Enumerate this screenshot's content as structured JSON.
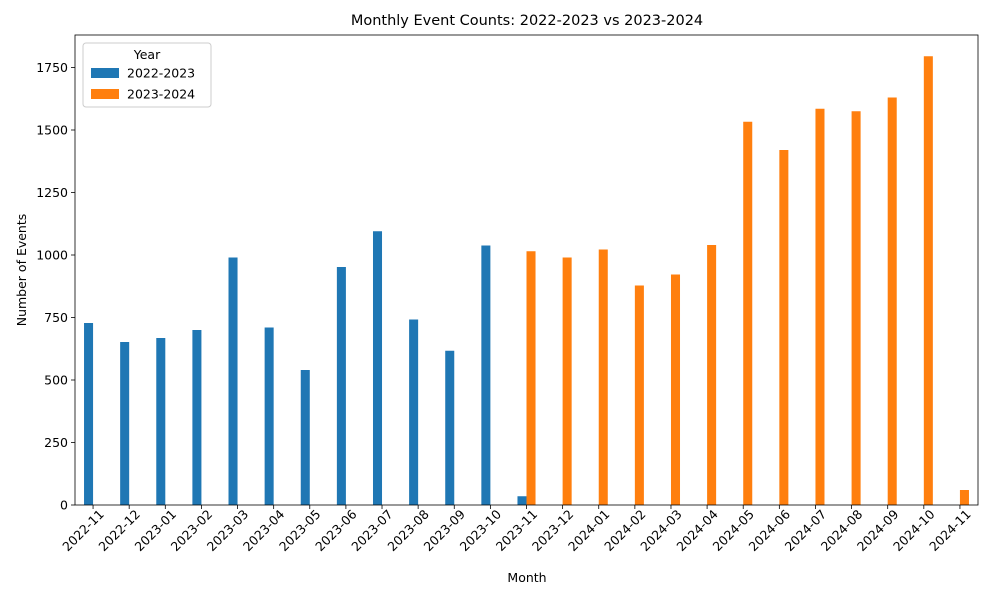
{
  "chart_data": {
    "type": "bar",
    "title": "Monthly Event Counts: 2022-2023 vs 2023-2024",
    "xlabel": "Month",
    "ylabel": "Number of Events",
    "ylim": [
      0,
      1880
    ],
    "yticks": [
      0,
      250,
      500,
      750,
      1000,
      1250,
      1500,
      1750
    ],
    "grid": false,
    "legend": {
      "title": "Year",
      "placement": "top-left"
    },
    "categories": [
      "2022-11",
      "2022-12",
      "2023-01",
      "2023-02",
      "2023-03",
      "2023-04",
      "2023-05",
      "2023-06",
      "2023-07",
      "2023-08",
      "2023-09",
      "2023-10",
      "2023-11",
      "2023-12",
      "2024-01",
      "2024-02",
      "2024-03",
      "2024-04",
      "2024-05",
      "2024-06",
      "2024-07",
      "2024-08",
      "2024-09",
      "2024-10",
      "2024-11"
    ],
    "series": [
      {
        "name": "2022-2023",
        "color": "#1f77b4",
        "values": [
          728,
          652,
          668,
          700,
          990,
          710,
          540,
          952,
          1095,
          742,
          617,
          1038,
          35,
          null,
          null,
          null,
          null,
          null,
          null,
          null,
          null,
          null,
          null,
          null,
          null
        ]
      },
      {
        "name": "2023-2024",
        "color": "#ff7f0e",
        "values": [
          null,
          null,
          null,
          null,
          null,
          null,
          null,
          null,
          null,
          null,
          null,
          null,
          1015,
          990,
          1022,
          878,
          922,
          1040,
          1533,
          1420,
          1585,
          1575,
          1630,
          1795,
          60
        ]
      }
    ]
  }
}
